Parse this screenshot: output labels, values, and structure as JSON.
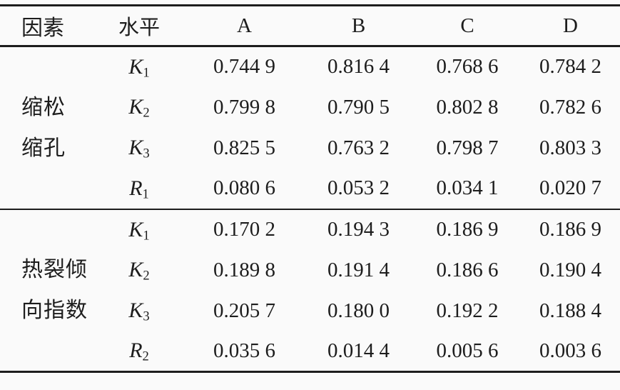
{
  "table": {
    "header": {
      "factor": "因素",
      "level": "水平",
      "cols": [
        "A",
        "B",
        "C",
        "D"
      ]
    },
    "groups": [
      {
        "factor_lines": [
          "缩松",
          "缩孔"
        ],
        "rows": [
          {
            "label_base": "K",
            "label_sub": "1",
            "values": [
              "0.744 9",
              "0.816 4",
              "0.768 6",
              "0.784 2"
            ]
          },
          {
            "label_base": "K",
            "label_sub": "2",
            "values": [
              "0.799 8",
              "0.790 5",
              "0.802 8",
              "0.782 6"
            ]
          },
          {
            "label_base": "K",
            "label_sub": "3",
            "values": [
              "0.825 5",
              "0.763 2",
              "0.798 7",
              "0.803 3"
            ]
          },
          {
            "label_base": "R",
            "label_sub": "1",
            "values": [
              "0.080 6",
              "0.053 2",
              "0.034 1",
              "0.020 7"
            ]
          }
        ]
      },
      {
        "factor_lines": [
          "热裂倾",
          "向指数"
        ],
        "rows": [
          {
            "label_base": "K",
            "label_sub": "1",
            "values": [
              "0.170 2",
              "0.194 3",
              "0.186 9",
              "0.186 9"
            ]
          },
          {
            "label_base": "K",
            "label_sub": "2",
            "values": [
              "0.189 8",
              "0.191 4",
              "0.186 6",
              "0.190 4"
            ]
          },
          {
            "label_base": "K",
            "label_sub": "3",
            "values": [
              "0.205 7",
              "0.180 0",
              "0.192 2",
              "0.188 4"
            ]
          },
          {
            "label_base": "R",
            "label_sub": "2",
            "values": [
              "0.035 6",
              "0.014 4",
              "0.005 6",
              "0.003 6"
            ]
          }
        ]
      }
    ]
  }
}
